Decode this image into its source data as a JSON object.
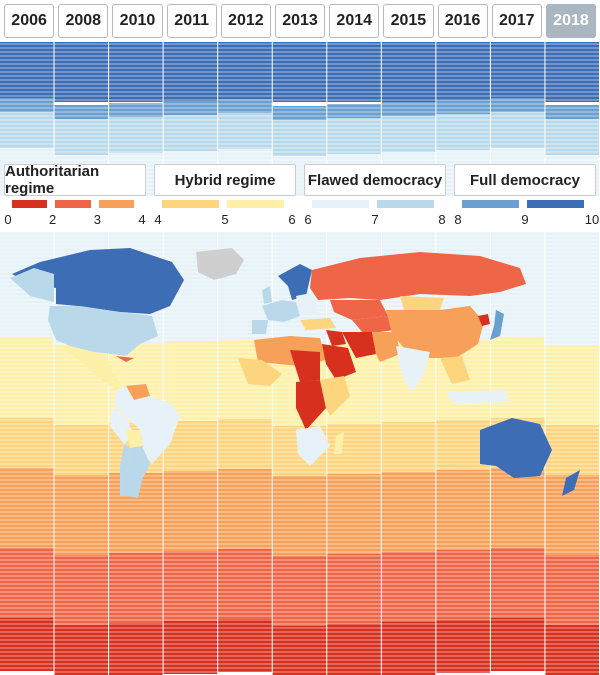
{
  "years": [
    "2006",
    "2008",
    "2010",
    "2011",
    "2012",
    "2013",
    "2014",
    "2015",
    "2016",
    "2017",
    "2018"
  ],
  "selected_year": "2018",
  "categories": [
    {
      "label": "Authoritarian regime",
      "colors": [
        "#d7301f",
        "#ef6548",
        "#f6a05a"
      ],
      "ticks": [
        "0",
        "2",
        "3",
        "4"
      ]
    },
    {
      "label": "Hybrid regime",
      "colors": [
        "#fdd57f",
        "#fef0a8"
      ],
      "ticks": [
        "4",
        "5",
        "6"
      ]
    },
    {
      "label": "Flawed democracy",
      "colors": [
        "#e6f2f8",
        "#b9d9ea"
      ],
      "ticks": [
        "6",
        "7",
        "8"
      ]
    },
    {
      "label": "Full democracy",
      "colors": [
        "#6aa0d0",
        "#3d6db5"
      ],
      "ticks": [
        "8",
        "9",
        "10"
      ]
    }
  ],
  "scale_colors": {
    "s0": "#d7301f",
    "s2": "#ef6548",
    "s3": "#f6a05a",
    "s4": "#fdd57f",
    "s5": "#fef0a8",
    "s6": "#e6f2f8",
    "s7": "#b9d9ea",
    "s8": "#6aa0d0",
    "s9": "#3d6db5",
    "no_data": "#cfcfcf"
  }
}
